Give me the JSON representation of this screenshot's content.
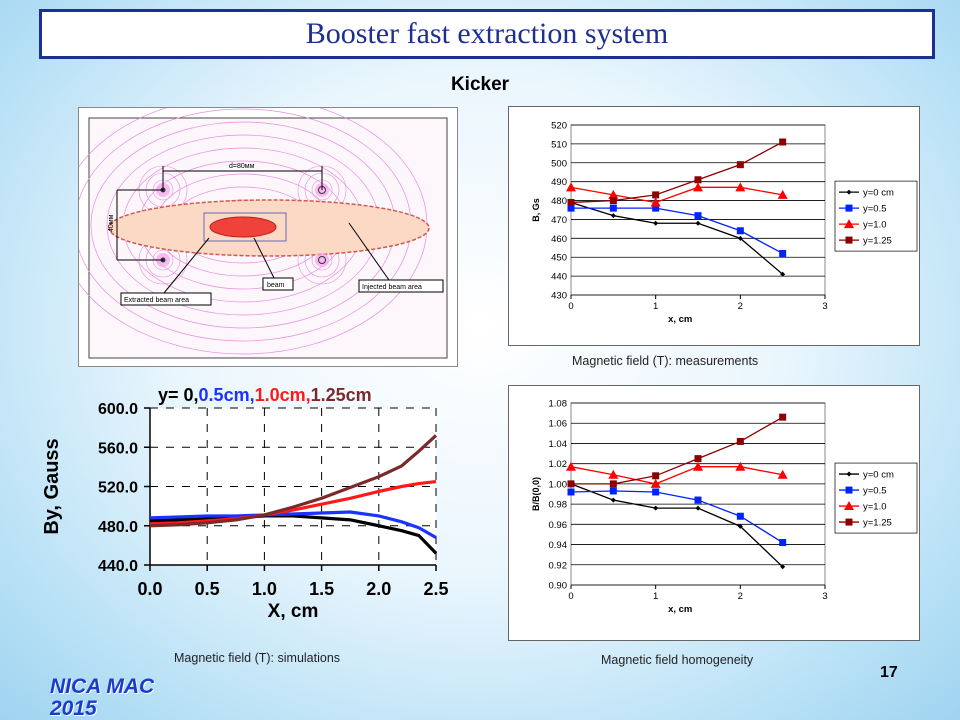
{
  "title": "Booster fast extraction system",
  "subtitle": "Kicker",
  "page_number": "17",
  "footer": {
    "line1": "NICA MAC",
    "line2": "2015"
  },
  "field_map": {
    "distance_label": "d=80мм",
    "gap_label": "40мм",
    "labels": {
      "extracted": "Extracted beam area",
      "beam": "beam",
      "injected": "Injected beam area"
    }
  },
  "captions": {
    "measurements": "Magnetic field (T): measurements",
    "simulations": "Magnetic field (T): simulations",
    "homogeneity": "Magnetic field homogeneity"
  },
  "chart_data": [
    {
      "id": "measurements",
      "type": "line",
      "xlabel": "x, cm",
      "ylabel": "B, Gs",
      "xlim": [
        0,
        3
      ],
      "ylim": [
        430,
        520
      ],
      "xticks": [
        0,
        1,
        2,
        3
      ],
      "yticks": [
        430,
        440,
        450,
        460,
        470,
        480,
        490,
        500,
        510,
        520
      ],
      "x": [
        0,
        0.5,
        1,
        1.5,
        2,
        2.5
      ],
      "grid": true,
      "legend": "right",
      "series": [
        {
          "name": "y=0 cm",
          "color": "#000000",
          "marker": "diamond",
          "values": [
            479,
            472,
            468,
            468,
            460,
            441
          ]
        },
        {
          "name": "y=0.5",
          "color": "#0022ff",
          "marker": "square",
          "values": [
            476,
            476,
            476,
            472,
            464,
            452
          ]
        },
        {
          "name": "y=1.0",
          "color": "#ff0000",
          "marker": "triangle",
          "values": [
            487,
            483,
            479,
            487,
            487,
            483
          ]
        },
        {
          "name": "y=1.25",
          "color": "#8b0000",
          "marker": "square",
          "values": [
            479,
            480,
            483,
            491,
            499,
            511
          ]
        }
      ]
    },
    {
      "id": "simulations",
      "type": "line",
      "title_parts": [
        "y= 0,",
        "0.5cm,",
        "1.0cm,",
        "1.25cm"
      ],
      "title_colors": [
        "#000000",
        "#1a33ff",
        "#ff1a1a",
        "#7a2a2a"
      ],
      "xlabel": "X, cm",
      "ylabel": "By, Gauss",
      "xlim": [
        0,
        2.5
      ],
      "ylim": [
        440,
        600
      ],
      "xticks": [
        "0.0",
        "0.5",
        "1.0",
        "1.5",
        "2.0",
        "2.5"
      ],
      "yticks": [
        "440.0",
        "480.0",
        "520.0",
        "560.0",
        "600.0"
      ],
      "x": [
        0,
        0.25,
        0.5,
        0.75,
        1,
        1.25,
        1.5,
        1.75,
        2,
        2.2,
        2.35,
        2.5
      ],
      "series": [
        {
          "name": "y=0",
          "color": "#000000",
          "values": [
            485,
            486,
            487,
            488,
            490,
            490,
            488,
            486,
            480,
            475,
            470,
            452
          ]
        },
        {
          "name": "y=0.5",
          "color": "#1a33ff",
          "values": [
            488,
            489,
            490,
            490,
            491,
            492,
            493,
            494,
            490,
            484,
            478,
            468
          ]
        },
        {
          "name": "y=1.0",
          "color": "#ff1a1a",
          "values": [
            482,
            483,
            485,
            487,
            491,
            496,
            502,
            508,
            515,
            520,
            523,
            525
          ]
        },
        {
          "name": "y=1.25",
          "color": "#7a2a2a",
          "values": [
            480,
            481,
            483,
            486,
            491,
            499,
            508,
            519,
            530,
            541,
            556,
            572
          ]
        }
      ]
    },
    {
      "id": "homogeneity",
      "type": "line",
      "xlabel": "x, cm",
      "ylabel": "B/B(0,0)",
      "xlim": [
        0,
        3
      ],
      "ylim": [
        0.9,
        1.08
      ],
      "xticks": [
        0,
        1,
        2,
        3
      ],
      "yticks": [
        "0.90",
        "0.92",
        "0.94",
        "0.96",
        "0.98",
        "1.00",
        "1.02",
        "1.04",
        "1.06",
        "1.08"
      ],
      "x": [
        0,
        0.5,
        1,
        1.5,
        2,
        2.5
      ],
      "grid": true,
      "legend": "right",
      "series": [
        {
          "name": "y=0 cm",
          "color": "#000000",
          "marker": "diamond",
          "values": [
            1.0,
            0.984,
            0.976,
            0.976,
            0.958,
            0.918
          ]
        },
        {
          "name": "y=0.5",
          "color": "#0022ff",
          "marker": "square",
          "values": [
            0.992,
            0.993,
            0.992,
            0.984,
            0.968,
            0.942
          ]
        },
        {
          "name": "y=1.0",
          "color": "#ff0000",
          "marker": "triangle",
          "values": [
            1.017,
            1.009,
            1.0,
            1.017,
            1.017,
            1.009
          ]
        },
        {
          "name": "y=1.25",
          "color": "#8b0000",
          "marker": "square",
          "values": [
            1.0,
            1.0,
            1.008,
            1.025,
            1.042,
            1.066
          ]
        }
      ]
    }
  ]
}
